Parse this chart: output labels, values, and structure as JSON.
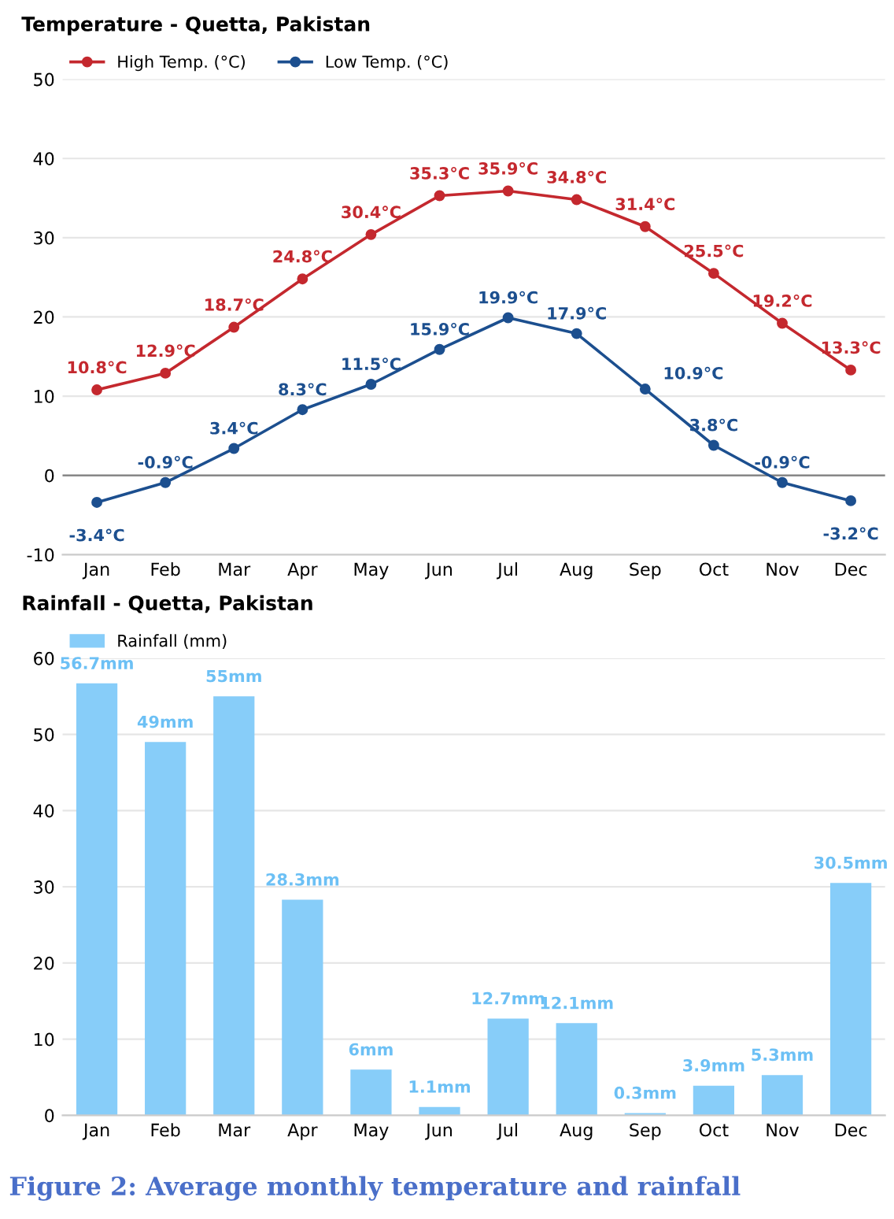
{
  "chart_data": [
    {
      "type": "line",
      "title": "Temperature - Quetta, Pakistan",
      "categories": [
        "Jan",
        "Feb",
        "Mar",
        "Apr",
        "May",
        "Jun",
        "Jul",
        "Aug",
        "Sep",
        "Oct",
        "Nov",
        "Dec"
      ],
      "series": [
        {
          "name": "High Temp. (°C)",
          "color": "#c4282e",
          "values": [
            10.8,
            12.9,
            18.7,
            24.8,
            30.4,
            35.3,
            35.9,
            34.8,
            31.4,
            25.5,
            19.2,
            13.3
          ],
          "value_labels": [
            "10.8°C",
            "12.9°C",
            "18.7°C",
            "24.8°C",
            "30.4°C",
            "35.3°C",
            "35.9°C",
            "34.8°C",
            "31.4°C",
            "25.5°C",
            "19.2°C",
            "13.3°C"
          ]
        },
        {
          "name": "Low Temp. (°C)",
          "color": "#1c4f8f",
          "values": [
            -3.4,
            -0.9,
            3.4,
            8.3,
            11.5,
            15.9,
            19.9,
            17.9,
            10.9,
            3.8,
            -0.9,
            -3.2
          ],
          "value_labels": [
            "-3.4°C",
            "-0.9°C",
            "3.4°C",
            "8.3°C",
            "11.5°C",
            "15.9°C",
            "19.9°C",
            "17.9°C",
            "10.9°C",
            "3.8°C",
            "-0.9°C",
            "-3.2°C"
          ]
        }
      ],
      "ylim": [
        -10,
        50
      ],
      "yticks": [
        -10,
        0,
        10,
        20,
        30,
        40,
        50
      ],
      "grid": "y",
      "legend": "top left",
      "marker": "circle",
      "line_style": "solid",
      "ref_lines": [
        {
          "axis": "y",
          "value": 0,
          "color": "#888888"
        }
      ]
    },
    {
      "type": "bar",
      "title": "Rainfall - Quetta, Pakistan",
      "categories": [
        "Jan",
        "Feb",
        "Mar",
        "Apr",
        "May",
        "Jun",
        "Jul",
        "Aug",
        "Sep",
        "Oct",
        "Nov",
        "Dec"
      ],
      "series": [
        {
          "name": "Rainfall (mm)",
          "color": "#87cdf9",
          "values": [
            56.7,
            49,
            55,
            28.3,
            6,
            1.1,
            12.7,
            12.1,
            0.3,
            3.9,
            5.3,
            30.5
          ],
          "value_labels": [
            "56.7mm",
            "49mm",
            "55mm",
            "28.3mm",
            "6mm",
            "1.1mm",
            "12.7mm",
            "12.1mm",
            "0.3mm",
            "3.9mm",
            "5.3mm",
            "30.5mm"
          ]
        }
      ],
      "ylim": [
        0,
        60
      ],
      "yticks": [
        0,
        10,
        20,
        30,
        40,
        50,
        60
      ],
      "grid": "y",
      "legend": "top left",
      "annotations": [
        "Figure 2: Average monthly temperature and rainfall"
      ]
    }
  ]
}
